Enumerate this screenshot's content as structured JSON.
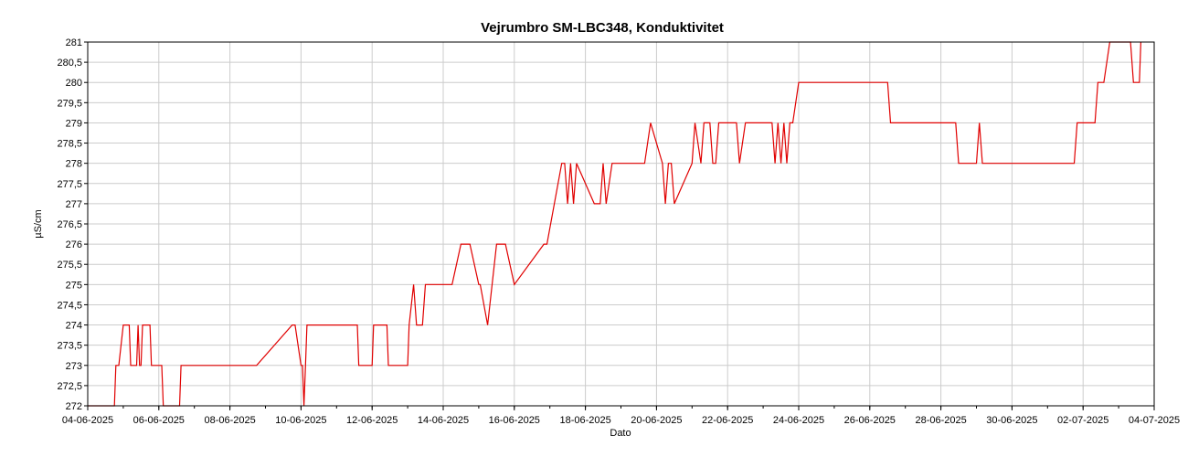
{
  "chart_data": {
    "type": "line",
    "title": "Vejrumbro SM-LBC348, Konduktivitet",
    "xlabel": "Dato",
    "ylabel": "µS/cm",
    "x_range": [
      "04-06-2025",
      "04-07-2025"
    ],
    "ylim": [
      272,
      281
    ],
    "y_ticks": [
      "272",
      "272,5",
      "273",
      "273,5",
      "274",
      "274,5",
      "275",
      "275,5",
      "276",
      "276,5",
      "277",
      "277,5",
      "278",
      "278,5",
      "279",
      "279,5",
      "280",
      "280,5",
      "281"
    ],
    "x_ticks": [
      "04-06-2025",
      "06-06-2025",
      "08-06-2025",
      "10-06-2025",
      "12-06-2025",
      "14-06-2025",
      "16-06-2025",
      "18-06-2025",
      "20-06-2025",
      "22-06-2025",
      "24-06-2025",
      "26-06-2025",
      "28-06-2025",
      "30-06-2025",
      "02-07-2025",
      "04-07-2025"
    ],
    "grid": true,
    "legend": "none",
    "series": [
      {
        "color": "#e00000",
        "x": [
          "2025-06-04 00:00",
          "2025-06-04 18:00",
          "2025-06-04 19:00",
          "2025-06-04 21:00",
          "2025-06-05 00:00",
          "2025-06-05 04:00",
          "2025-06-05 05:00",
          "2025-06-05 09:00",
          "2025-06-05 10:00",
          "2025-06-05 11:00",
          "2025-06-05 11:30",
          "2025-06-05 12:00",
          "2025-06-05 13:00",
          "2025-06-05 18:00",
          "2025-06-05 19:00",
          "2025-06-06 02:00",
          "2025-06-06 03:00",
          "2025-06-06 06:00",
          "2025-06-06 07:00",
          "2025-06-06 14:00",
          "2025-06-06 15:00",
          "2025-06-07 08:00",
          "2025-06-07 09:00",
          "2025-06-08 18:00",
          "2025-06-09 18:00",
          "2025-06-09 20:00",
          "2025-06-10 00:00",
          "2025-06-10 01:00",
          "2025-06-10 02:00",
          "2025-06-10 03:00",
          "2025-06-10 04:00",
          "2025-06-11 14:00",
          "2025-06-11 15:00",
          "2025-06-12 00:00",
          "2025-06-12 01:00",
          "2025-06-12 10:00",
          "2025-06-12 11:00",
          "2025-06-13 00:00",
          "2025-06-13 01:00",
          "2025-06-13 04:00",
          "2025-06-13 06:00",
          "2025-06-13 10:00",
          "2025-06-13 12:00",
          "2025-06-14 06:00",
          "2025-06-14 12:00",
          "2025-06-14 18:00",
          "2025-06-15 00:00",
          "2025-06-15 01:00",
          "2025-06-15 06:00",
          "2025-06-15 12:00",
          "2025-06-15 18:00",
          "2025-06-16 00:00",
          "2025-06-16 20:00",
          "2025-06-16 22:00",
          "2025-06-17 08:00",
          "2025-06-17 10:00",
          "2025-06-17 12:00",
          "2025-06-17 14:00",
          "2025-06-17 16:00",
          "2025-06-17 18:00",
          "2025-06-18 06:00",
          "2025-06-18 08:00",
          "2025-06-18 10:00",
          "2025-06-18 12:00",
          "2025-06-18 14:00",
          "2025-06-18 18:00",
          "2025-06-19 16:00",
          "2025-06-19 20:00",
          "2025-06-20 04:00",
          "2025-06-20 06:00",
          "2025-06-20 08:00",
          "2025-06-20 10:00",
          "2025-06-20 12:00",
          "2025-06-21 00:00",
          "2025-06-21 02:00",
          "2025-06-21 06:00",
          "2025-06-21 08:00",
          "2025-06-21 12:00",
          "2025-06-21 14:00",
          "2025-06-21 16:00",
          "2025-06-21 18:00",
          "2025-06-22 06:00",
          "2025-06-22 08:00",
          "2025-06-22 12:00",
          "2025-06-23 06:00",
          "2025-06-23 08:00",
          "2025-06-23 10:00",
          "2025-06-23 12:00",
          "2025-06-23 14:00",
          "2025-06-23 16:00",
          "2025-06-23 18:00",
          "2025-06-23 20:00",
          "2025-06-24 00:00",
          "2025-06-24 02:00",
          "2025-06-26 12:00",
          "2025-06-26 14:00",
          "2025-06-28 10:00",
          "2025-06-28 12:00",
          "2025-06-29 00:00",
          "2025-06-29 02:00",
          "2025-06-29 04:00",
          "2025-07-01 18:00",
          "2025-07-01 20:00",
          "2025-07-02 08:00",
          "2025-07-02 10:00",
          "2025-07-02 14:00",
          "2025-07-02 18:00",
          "2025-07-03 08:00",
          "2025-07-03 10:00",
          "2025-07-03 14:00",
          "2025-07-03 15:00"
        ],
        "y": [
          272,
          272,
          273,
          273,
          274,
          274,
          273,
          273,
          274,
          273,
          273,
          273,
          274,
          274,
          273,
          273,
          272,
          272,
          272,
          272,
          273,
          273,
          273,
          273,
          274,
          274,
          273,
          273,
          272,
          273,
          274,
          274,
          273,
          273,
          274,
          274,
          273,
          273,
          274,
          275,
          274,
          274,
          275,
          275,
          276,
          276,
          275,
          275,
          274,
          276,
          276,
          275,
          276,
          276,
          278,
          278,
          277,
          278,
          277,
          278,
          277,
          277,
          277,
          278,
          277,
          278,
          278,
          279,
          278,
          277,
          278,
          278,
          277,
          278,
          279,
          278,
          279,
          279,
          278,
          278,
          279,
          279,
          278,
          279,
          279,
          278,
          279,
          278,
          279,
          278,
          279,
          279,
          280,
          280,
          280,
          279,
          279,
          278,
          278,
          279,
          278,
          278,
          279,
          279,
          280,
          280,
          281,
          281,
          280,
          280,
          281
        ]
      }
    ]
  }
}
